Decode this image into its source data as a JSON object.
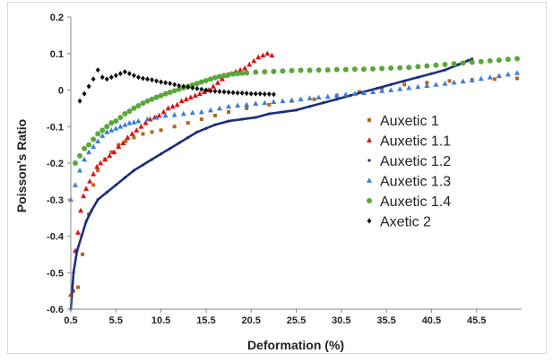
{
  "chart_data": {
    "type": "scatter",
    "title": "",
    "xlabel": "Deformation (%)",
    "ylabel": "Poisson's Ratio",
    "xlim": [
      0.5,
      50.5
    ],
    "ylim": [
      -0.6,
      0.2
    ],
    "xticks": [
      "0.5",
      "5.5",
      "10.5",
      "15.5",
      "20.5",
      "25.5",
      "30.5",
      "35.5",
      "40.5",
      "45.5"
    ],
    "yticks": [
      "0.2",
      "0.1",
      "0",
      "-0.1",
      "-0.2",
      "-0.3",
      "-0.4",
      "-0.5",
      "-0.6"
    ],
    "xtick_values": [
      0.5,
      5.5,
      10.5,
      15.5,
      20.5,
      25.5,
      30.5,
      35.5,
      40.5,
      45.5
    ],
    "ytick_values": [
      0.2,
      0.1,
      0,
      -0.1,
      -0.2,
      -0.3,
      -0.4,
      -0.5,
      -0.6
    ],
    "grid": false,
    "legend_position": "right",
    "series": [
      {
        "name": "Auxetic 1",
        "color": "#b8651b",
        "marker": "square",
        "points": [
          [
            0.8,
            -0.55
          ],
          [
            1.3,
            -0.54
          ],
          [
            1.8,
            -0.45
          ],
          [
            2.5,
            -0.34
          ],
          [
            3.0,
            -0.26
          ],
          [
            3.5,
            -0.22
          ],
          [
            4.3,
            -0.19
          ],
          [
            5.0,
            -0.17
          ],
          [
            5.8,
            -0.15
          ],
          [
            6.6,
            -0.14
          ],
          [
            7.5,
            -0.13
          ],
          [
            8.5,
            -0.12
          ],
          [
            9.5,
            -0.115
          ],
          [
            10.5,
            -0.11
          ],
          [
            12.0,
            -0.1
          ],
          [
            13.5,
            -0.09
          ],
          [
            15.0,
            -0.08
          ],
          [
            16.5,
            -0.07
          ],
          [
            18.0,
            -0.06
          ],
          [
            20.0,
            -0.05
          ],
          [
            22.5,
            -0.04
          ],
          [
            25.0,
            -0.03
          ],
          [
            27.5,
            -0.025
          ],
          [
            30.0,
            -0.015
          ],
          [
            32.5,
            -0.005
          ],
          [
            35.0,
            0.005
          ],
          [
            37.5,
            0.015
          ],
          [
            40.0,
            0.02
          ],
          [
            42.5,
            0.025
          ],
          [
            45.0,
            0.028
          ],
          [
            47.5,
            0.03
          ],
          [
            50.0,
            0.032
          ]
        ]
      },
      {
        "name": "Auxetic 1.1",
        "color": "#e01010",
        "marker": "triangle",
        "points": [
          [
            0.5,
            -0.56
          ],
          [
            1.0,
            -0.44
          ],
          [
            1.3,
            -0.39
          ],
          [
            1.6,
            -0.33
          ],
          [
            1.9,
            -0.29
          ],
          [
            2.2,
            -0.27
          ],
          [
            2.6,
            -0.25
          ],
          [
            3.0,
            -0.23
          ],
          [
            3.4,
            -0.21
          ],
          [
            3.8,
            -0.2
          ],
          [
            4.3,
            -0.19
          ],
          [
            4.8,
            -0.18
          ],
          [
            5.3,
            -0.17
          ],
          [
            5.8,
            -0.155
          ],
          [
            6.3,
            -0.145
          ],
          [
            6.8,
            -0.13
          ],
          [
            7.3,
            -0.12
          ],
          [
            7.8,
            -0.11
          ],
          [
            8.3,
            -0.1
          ],
          [
            8.8,
            -0.09
          ],
          [
            9.3,
            -0.08
          ],
          [
            9.8,
            -0.075
          ],
          [
            10.3,
            -0.07
          ],
          [
            10.8,
            -0.06
          ],
          [
            11.3,
            -0.05
          ],
          [
            11.8,
            -0.045
          ],
          [
            12.3,
            -0.04
          ],
          [
            12.8,
            -0.03
          ],
          [
            13.3,
            -0.025
          ],
          [
            13.8,
            -0.02
          ],
          [
            14.3,
            -0.015
          ],
          [
            14.8,
            -0.01
          ],
          [
            15.3,
            -0.005
          ],
          [
            15.8,
            0.0
          ],
          [
            16.3,
            0.01
          ],
          [
            16.8,
            0.02
          ],
          [
            17.3,
            0.03
          ],
          [
            17.8,
            0.04
          ],
          [
            18.3,
            0.045
          ],
          [
            18.8,
            0.05
          ],
          [
            19.3,
            0.055
          ],
          [
            19.8,
            0.06
          ],
          [
            20.3,
            0.07
          ],
          [
            20.8,
            0.08
          ],
          [
            21.3,
            0.09
          ],
          [
            21.8,
            0.095
          ],
          [
            22.3,
            0.1
          ],
          [
            22.8,
            0.095
          ]
        ]
      },
      {
        "name": "Auxetic 1.2",
        "color": "#1a2f7a",
        "marker": "line",
        "points": [
          [
            0.5,
            -0.6
          ],
          [
            0.8,
            -0.5
          ],
          [
            1.2,
            -0.44
          ],
          [
            1.7,
            -0.4
          ],
          [
            2.2,
            -0.36
          ],
          [
            2.8,
            -0.33
          ],
          [
            3.5,
            -0.3
          ],
          [
            4.5,
            -0.28
          ],
          [
            5.5,
            -0.26
          ],
          [
            6.5,
            -0.24
          ],
          [
            7.5,
            -0.22
          ],
          [
            8.5,
            -0.205
          ],
          [
            9.5,
            -0.19
          ],
          [
            10.5,
            -0.175
          ],
          [
            11.5,
            -0.16
          ],
          [
            12.5,
            -0.145
          ],
          [
            13.5,
            -0.13
          ],
          [
            14.5,
            -0.115
          ],
          [
            15.5,
            -0.105
          ],
          [
            16.5,
            -0.095
          ],
          [
            18.0,
            -0.085
          ],
          [
            19.5,
            -0.08
          ],
          [
            21.0,
            -0.075
          ],
          [
            22.5,
            -0.065
          ],
          [
            24.0,
            -0.06
          ],
          [
            25.5,
            -0.055
          ],
          [
            27.0,
            -0.045
          ],
          [
            28.5,
            -0.035
          ],
          [
            30.0,
            -0.025
          ],
          [
            31.5,
            -0.015
          ],
          [
            33.0,
            -0.005
          ],
          [
            34.5,
            0.005
          ],
          [
            36.0,
            0.015
          ],
          [
            37.5,
            0.025
          ],
          [
            39.0,
            0.035
          ],
          [
            40.5,
            0.045
          ],
          [
            42.0,
            0.055
          ],
          [
            43.5,
            0.07
          ],
          [
            44.5,
            0.08
          ],
          [
            45.0,
            0.085
          ]
        ]
      },
      {
        "name": "Auxetic 1.3",
        "color": "#3a7fd5",
        "marker": "triangle",
        "points": [
          [
            0.5,
            -0.3
          ],
          [
            1.0,
            -0.26
          ],
          [
            1.5,
            -0.22
          ],
          [
            2.0,
            -0.19
          ],
          [
            2.5,
            -0.17
          ],
          [
            3.0,
            -0.155
          ],
          [
            3.5,
            -0.14
          ],
          [
            4.0,
            -0.125
          ],
          [
            4.5,
            -0.115
          ],
          [
            5.0,
            -0.11
          ],
          [
            5.5,
            -0.105
          ],
          [
            6.0,
            -0.1
          ],
          [
            6.5,
            -0.095
          ],
          [
            7.0,
            -0.09
          ],
          [
            7.5,
            -0.088
          ],
          [
            8.0,
            -0.085
          ],
          [
            9.0,
            -0.08
          ],
          [
            10.0,
            -0.075
          ],
          [
            11.0,
            -0.07
          ],
          [
            12.0,
            -0.068
          ],
          [
            13.0,
            -0.065
          ],
          [
            14.0,
            -0.062
          ],
          [
            15.0,
            -0.06
          ],
          [
            16.0,
            -0.055
          ],
          [
            17.0,
            -0.05
          ],
          [
            18.0,
            -0.045
          ],
          [
            19.0,
            -0.042
          ],
          [
            20.0,
            -0.04
          ],
          [
            21.0,
            -0.037
          ],
          [
            22.0,
            -0.035
          ],
          [
            23.0,
            -0.032
          ],
          [
            24.0,
            -0.03
          ],
          [
            25.0,
            -0.028
          ],
          [
            26.0,
            -0.025
          ],
          [
            27.0,
            -0.022
          ],
          [
            28.0,
            -0.02
          ],
          [
            29.0,
            -0.018
          ],
          [
            30.0,
            -0.015
          ],
          [
            31.0,
            -0.012
          ],
          [
            32.0,
            -0.01
          ],
          [
            33.0,
            -0.008
          ],
          [
            34.0,
            -0.005
          ],
          [
            35.0,
            -0.002
          ],
          [
            36.0,
            0.0
          ],
          [
            37.0,
            0.003
          ],
          [
            38.0,
            0.006
          ],
          [
            39.0,
            0.009
          ],
          [
            40.0,
            0.012
          ],
          [
            41.0,
            0.015
          ],
          [
            42.0,
            0.018
          ],
          [
            43.0,
            0.021
          ],
          [
            44.0,
            0.024
          ],
          [
            45.0,
            0.027
          ],
          [
            46.0,
            0.031
          ],
          [
            47.0,
            0.035
          ],
          [
            48.0,
            0.039
          ],
          [
            49.0,
            0.043
          ],
          [
            50.0,
            0.047
          ]
        ]
      },
      {
        "name": "Auxetic 1.4",
        "color": "#5aa83a",
        "marker": "circle",
        "points": [
          [
            1.0,
            -0.2
          ],
          [
            1.5,
            -0.18
          ],
          [
            2.0,
            -0.16
          ],
          [
            2.5,
            -0.15
          ],
          [
            3.0,
            -0.135
          ],
          [
            3.5,
            -0.12
          ],
          [
            4.0,
            -0.11
          ],
          [
            4.5,
            -0.1
          ],
          [
            5.0,
            -0.09
          ],
          [
            5.5,
            -0.085
          ],
          [
            6.0,
            -0.075
          ],
          [
            6.5,
            -0.065
          ],
          [
            7.0,
            -0.058
          ],
          [
            7.5,
            -0.05
          ],
          [
            8.0,
            -0.043
          ],
          [
            8.5,
            -0.036
          ],
          [
            9.0,
            -0.03
          ],
          [
            9.5,
            -0.025
          ],
          [
            10.0,
            -0.02
          ],
          [
            10.5,
            -0.015
          ],
          [
            11.0,
            -0.01
          ],
          [
            11.5,
            -0.006
          ],
          [
            12.0,
            -0.002
          ],
          [
            12.5,
            0.002
          ],
          [
            13.0,
            0.006
          ],
          [
            13.5,
            0.01
          ],
          [
            14.0,
            0.014
          ],
          [
            14.5,
            0.018
          ],
          [
            15.0,
            0.022
          ],
          [
            15.5,
            0.026
          ],
          [
            16.0,
            0.03
          ],
          [
            16.5,
            0.034
          ],
          [
            17.0,
            0.037
          ],
          [
            17.5,
            0.04
          ],
          [
            18.0,
            0.042
          ],
          [
            18.5,
            0.044
          ],
          [
            19.0,
            0.045
          ],
          [
            19.5,
            0.046
          ],
          [
            20.0,
            0.047
          ],
          [
            21.0,
            0.049
          ],
          [
            22.0,
            0.05
          ],
          [
            23.0,
            0.051
          ],
          [
            24.0,
            0.052
          ],
          [
            25.0,
            0.053
          ],
          [
            26.0,
            0.054
          ],
          [
            27.0,
            0.054
          ],
          [
            28.0,
            0.055
          ],
          [
            29.0,
            0.055
          ],
          [
            30.0,
            0.056
          ],
          [
            31.0,
            0.056
          ],
          [
            32.0,
            0.057
          ],
          [
            33.0,
            0.057
          ],
          [
            34.0,
            0.058
          ],
          [
            35.0,
            0.059
          ],
          [
            36.0,
            0.06
          ],
          [
            37.0,
            0.061
          ],
          [
            38.0,
            0.062
          ],
          [
            39.0,
            0.064
          ],
          [
            40.0,
            0.066
          ],
          [
            41.0,
            0.068
          ],
          [
            42.0,
            0.07
          ],
          [
            43.0,
            0.072
          ],
          [
            44.0,
            0.074
          ],
          [
            45.0,
            0.076
          ],
          [
            46.0,
            0.078
          ],
          [
            47.0,
            0.08
          ],
          [
            48.0,
            0.082
          ],
          [
            49.0,
            0.084
          ],
          [
            50.0,
            0.086
          ]
        ]
      },
      {
        "name": "Axetic 2",
        "color": "#111111",
        "marker": "diamond",
        "points": [
          [
            1.5,
            -0.03
          ],
          [
            2.0,
            -0.01
          ],
          [
            2.5,
            0.01
          ],
          [
            3.0,
            0.03
          ],
          [
            3.5,
            0.055
          ],
          [
            4.0,
            0.035
          ],
          [
            4.5,
            0.03
          ],
          [
            5.0,
            0.035
          ],
          [
            5.5,
            0.04
          ],
          [
            6.0,
            0.045
          ],
          [
            6.5,
            0.05
          ],
          [
            7.0,
            0.045
          ],
          [
            7.5,
            0.04
          ],
          [
            8.0,
            0.035
          ],
          [
            8.5,
            0.032
          ],
          [
            9.0,
            0.03
          ],
          [
            9.5,
            0.028
          ],
          [
            10.0,
            0.025
          ],
          [
            10.5,
            0.022
          ],
          [
            11.0,
            0.02
          ],
          [
            11.5,
            0.018
          ],
          [
            12.0,
            0.015
          ],
          [
            12.5,
            0.012
          ],
          [
            13.0,
            0.01
          ],
          [
            13.5,
            0.008
          ],
          [
            14.0,
            0.006
          ],
          [
            14.5,
            0.004
          ],
          [
            15.0,
            0.002
          ],
          [
            15.5,
            0.0
          ],
          [
            16.0,
            -0.002
          ],
          [
            16.5,
            -0.003
          ],
          [
            17.0,
            -0.004
          ],
          [
            17.5,
            -0.005
          ],
          [
            18.0,
            -0.006
          ],
          [
            18.5,
            -0.007
          ],
          [
            19.0,
            -0.008
          ],
          [
            19.5,
            -0.008
          ],
          [
            20.0,
            -0.009
          ],
          [
            20.5,
            -0.01
          ],
          [
            21.0,
            -0.01
          ],
          [
            21.5,
            -0.01
          ],
          [
            22.0,
            -0.011
          ],
          [
            22.5,
            -0.011
          ],
          [
            23.0,
            -0.012
          ]
        ]
      }
    ]
  }
}
